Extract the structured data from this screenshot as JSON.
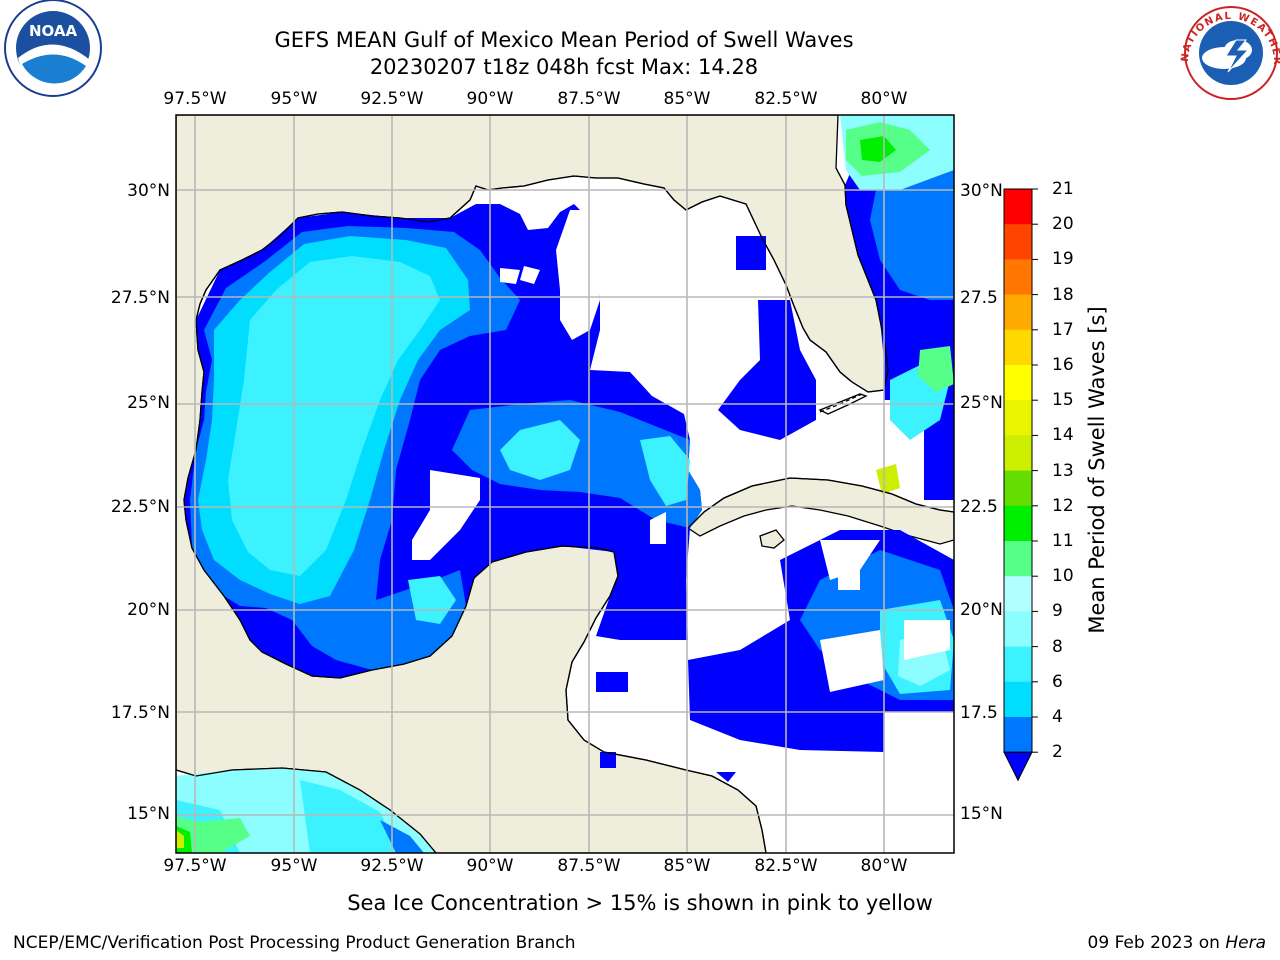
{
  "title": {
    "line1": "GEFS MEAN Gulf of Mexico Mean Period of Swell Waves",
    "line2": "20230207 t18z 048h fcst   Max: 14.28"
  },
  "map": {
    "lon_ticks": [
      "97.5°W",
      "95°W",
      "92.5°W",
      "90°W",
      "87.5°W",
      "85°W",
      "82.5°W",
      "80°W"
    ],
    "lat_ticks_left": [
      "30°N",
      "27.5°N",
      "25°N",
      "22.5°N",
      "20°N",
      "17.5°N",
      "15°N"
    ],
    "lat_ticks_right": [
      "30°N",
      "27.5",
      "25°N",
      "22.5",
      "20°N",
      "17.5",
      "15°N"
    ],
    "land_color": "#efeddc",
    "grid_color": "#b8b8b8"
  },
  "colorbar": {
    "label": "Mean Period of Swell Waves [s]",
    "ticks": [
      "2",
      "4",
      "6",
      "8",
      "9",
      "10",
      "11",
      "12",
      "13",
      "14",
      "15",
      "16",
      "17",
      "18",
      "19",
      "20",
      "21"
    ],
    "colors": [
      "#0000ff",
      "#0077ff",
      "#00ddff",
      "#3cf2ff",
      "#8cfeff",
      "#b2ffff",
      "#55ff88",
      "#00ee00",
      "#66dd00",
      "#ccee00",
      "#e8f400",
      "#ffff00",
      "#ffd800",
      "#ffaa00",
      "#ff7700",
      "#ff4400",
      "#ff0000"
    ]
  },
  "note": "Sea Ice Concentration > 15% is shown in pink to yellow",
  "footer": {
    "left": "NCEP/EMC/Verification Post Processing Product Generation Branch",
    "date": "09 Feb 2023 on",
    "host": "Hera"
  },
  "logos": {
    "left_text": "NOAA",
    "right_text": "NATIONAL WEATHER SERVICE"
  }
}
